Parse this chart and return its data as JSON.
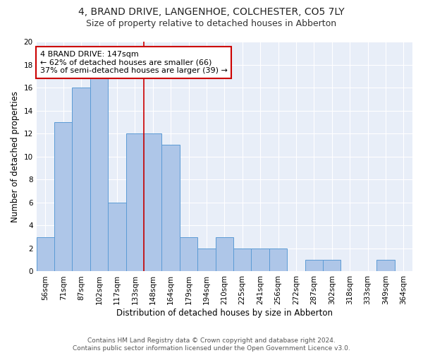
{
  "title": "4, BRAND DRIVE, LANGENHOE, COLCHESTER, CO5 7LY",
  "subtitle": "Size of property relative to detached houses in Abberton",
  "xlabel": "Distribution of detached houses by size in Abberton",
  "ylabel": "Number of detached properties",
  "bins": [
    "56sqm",
    "71sqm",
    "87sqm",
    "102sqm",
    "117sqm",
    "133sqm",
    "148sqm",
    "164sqm",
    "179sqm",
    "194sqm",
    "210sqm",
    "225sqm",
    "241sqm",
    "256sqm",
    "272sqm",
    "287sqm",
    "302sqm",
    "318sqm",
    "333sqm",
    "349sqm",
    "364sqm"
  ],
  "values": [
    3,
    13,
    16,
    17,
    6,
    12,
    12,
    11,
    3,
    2,
    3,
    2,
    2,
    2,
    0,
    1,
    1,
    0,
    0,
    1,
    0
  ],
  "bar_color": "#aec6e8",
  "bar_edgecolor": "#5b9bd5",
  "annotation_line1": "4 BRAND DRIVE: 147sqm",
  "annotation_line2": "← 62% of detached houses are smaller (66)",
  "annotation_line3": "37% of semi-detached houses are larger (39) →",
  "annotation_box_color": "#ffffff",
  "annotation_box_edgecolor": "#cc0000",
  "marker_line_color": "#cc0000",
  "ylim": [
    0,
    20
  ],
  "yticks": [
    0,
    2,
    4,
    6,
    8,
    10,
    12,
    14,
    16,
    18,
    20
  ],
  "bg_color": "#e8eef8",
  "footer1": "Contains HM Land Registry data © Crown copyright and database right 2024.",
  "footer2": "Contains public sector information licensed under the Open Government Licence v3.0.",
  "title_fontsize": 10,
  "subtitle_fontsize": 9,
  "axis_label_fontsize": 8.5,
  "tick_fontsize": 7.5,
  "annotation_fontsize": 8,
  "footer_fontsize": 6.5
}
